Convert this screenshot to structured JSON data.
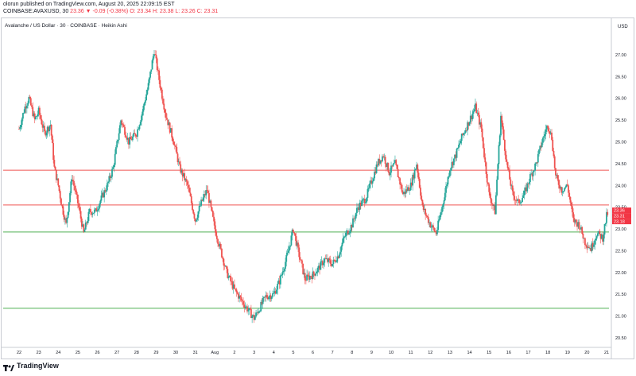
{
  "header": {
    "published": "olorun published on TradingView.com, August 20, 2025 22:09:15 EST",
    "symbol": "COINBASE:AVAXUSD, 30",
    "ohlc_main": "23.36 ▼ -0.09 (-0.38%) O: 23.34 H: 23.38 L: 23.26 C: 23.31"
  },
  "legend": "Avalanche / US Dollar · 30 · COINBASE · Heikin Ashi",
  "footer": {
    "brand": "TradingView"
  },
  "colors": {
    "up": "#26a69a",
    "down": "#ef5350",
    "support_line": "#4caf50",
    "resistance_line": "#ef5350",
    "price_label_red": "#f23645"
  },
  "chart_data": {
    "type": "candlestick",
    "subtype": "heikin-ashi",
    "currency": "USD",
    "y_ticks": [
      "27.00",
      "26.50",
      "26.00",
      "25.50",
      "25.00",
      "24.50",
      "24.00",
      "23.50",
      "23.00",
      "22.50",
      "22.00",
      "21.50",
      "21.00",
      "20.50"
    ],
    "ylim": [
      20.3,
      27.6
    ],
    "x_ticks": [
      "22",
      "23",
      "24",
      "25",
      "26",
      "27",
      "28",
      "29",
      "30",
      "31",
      "Aug",
      "2",
      "3",
      "4",
      "5",
      "6",
      "7",
      "8",
      "9",
      "10",
      "11",
      "12",
      "13",
      "14",
      "15",
      "16",
      "17",
      "18",
      "19",
      "20",
      "21"
    ],
    "horizontal_lines": [
      {
        "value": 24.35,
        "color": "red"
      },
      {
        "value": 23.55,
        "color": "red"
      },
      {
        "value": 22.93,
        "color": "green"
      },
      {
        "value": 21.18,
        "color": "green"
      }
    ],
    "price_labels": [
      "23.36",
      "23.31",
      "23.18"
    ],
    "series": [
      {
        "name": "AVAXUSD",
        "values": [
          {
            "x": 0,
            "y": 25.3
          },
          {
            "x": 0.3,
            "y": 25.8
          },
          {
            "x": 0.5,
            "y": 26.0
          },
          {
            "x": 0.8,
            "y": 25.5
          },
          {
            "x": 1.0,
            "y": 25.7
          },
          {
            "x": 1.3,
            "y": 25.2
          },
          {
            "x": 1.6,
            "y": 25.4
          },
          {
            "x": 1.8,
            "y": 24.4
          },
          {
            "x": 2.0,
            "y": 24.0
          },
          {
            "x": 2.2,
            "y": 23.5
          },
          {
            "x": 2.4,
            "y": 23.1
          },
          {
            "x": 2.7,
            "y": 24.2
          },
          {
            "x": 3.0,
            "y": 23.6
          },
          {
            "x": 3.3,
            "y": 22.9
          },
          {
            "x": 3.6,
            "y": 23.4
          },
          {
            "x": 3.9,
            "y": 23.4
          },
          {
            "x": 4.2,
            "y": 23.7
          },
          {
            "x": 4.5,
            "y": 24.0
          },
          {
            "x": 4.8,
            "y": 24.4
          },
          {
            "x": 5.2,
            "y": 25.5
          },
          {
            "x": 5.6,
            "y": 25.0
          },
          {
            "x": 6.0,
            "y": 25.2
          },
          {
            "x": 6.3,
            "y": 25.7
          },
          {
            "x": 6.6,
            "y": 26.3
          },
          {
            "x": 6.9,
            "y": 27.1
          },
          {
            "x": 7.2,
            "y": 26.3
          },
          {
            "x": 7.5,
            "y": 25.6
          },
          {
            "x": 7.9,
            "y": 25.0
          },
          {
            "x": 8.2,
            "y": 24.4
          },
          {
            "x": 8.6,
            "y": 24.0
          },
          {
            "x": 9.0,
            "y": 23.2
          },
          {
            "x": 9.3,
            "y": 23.6
          },
          {
            "x": 9.6,
            "y": 23.9
          },
          {
            "x": 10.0,
            "y": 23.0
          },
          {
            "x": 10.3,
            "y": 22.5
          },
          {
            "x": 10.6,
            "y": 22.0
          },
          {
            "x": 11.0,
            "y": 21.6
          },
          {
            "x": 11.3,
            "y": 21.4
          },
          {
            "x": 11.6,
            "y": 21.2
          },
          {
            "x": 12.0,
            "y": 20.95
          },
          {
            "x": 12.3,
            "y": 21.2
          },
          {
            "x": 12.6,
            "y": 21.45
          },
          {
            "x": 13.0,
            "y": 21.5
          },
          {
            "x": 13.3,
            "y": 21.8
          },
          {
            "x": 13.7,
            "y": 22.4
          },
          {
            "x": 14.0,
            "y": 23.0
          },
          {
            "x": 14.3,
            "y": 22.4
          },
          {
            "x": 14.6,
            "y": 21.85
          },
          {
            "x": 15.0,
            "y": 21.95
          },
          {
            "x": 15.3,
            "y": 22.1
          },
          {
            "x": 15.6,
            "y": 22.3
          },
          {
            "x": 16.0,
            "y": 22.2
          },
          {
            "x": 16.3,
            "y": 22.4
          },
          {
            "x": 16.6,
            "y": 22.8
          },
          {
            "x": 17.0,
            "y": 23.1
          },
          {
            "x": 17.3,
            "y": 23.5
          },
          {
            "x": 17.7,
            "y": 23.7
          },
          {
            "x": 18.0,
            "y": 24.1
          },
          {
            "x": 18.3,
            "y": 24.5
          },
          {
            "x": 18.6,
            "y": 24.7
          },
          {
            "x": 18.9,
            "y": 24.3
          },
          {
            "x": 19.2,
            "y": 24.5
          },
          {
            "x": 19.6,
            "y": 23.8
          },
          {
            "x": 20.0,
            "y": 24.0
          },
          {
            "x": 20.3,
            "y": 24.5
          },
          {
            "x": 20.6,
            "y": 23.5
          },
          {
            "x": 21.0,
            "y": 23.1
          },
          {
            "x": 21.3,
            "y": 22.9
          },
          {
            "x": 21.6,
            "y": 23.5
          },
          {
            "x": 22.0,
            "y": 24.4
          },
          {
            "x": 22.3,
            "y": 24.7
          },
          {
            "x": 22.6,
            "y": 25.1
          },
          {
            "x": 23.0,
            "y": 25.5
          },
          {
            "x": 23.3,
            "y": 25.8
          },
          {
            "x": 23.6,
            "y": 25.3
          },
          {
            "x": 23.8,
            "y": 24.5
          },
          {
            "x": 24.0,
            "y": 23.8
          },
          {
            "x": 24.3,
            "y": 23.4
          },
          {
            "x": 24.6,
            "y": 25.6
          },
          {
            "x": 24.9,
            "y": 24.5
          },
          {
            "x": 25.2,
            "y": 23.8
          },
          {
            "x": 25.5,
            "y": 23.6
          },
          {
            "x": 25.8,
            "y": 23.8
          },
          {
            "x": 26.1,
            "y": 24.2
          },
          {
            "x": 26.4,
            "y": 24.5
          },
          {
            "x": 26.7,
            "y": 25.0
          },
          {
            "x": 27.0,
            "y": 25.4
          },
          {
            "x": 27.2,
            "y": 25.1
          },
          {
            "x": 27.4,
            "y": 24.2
          },
          {
            "x": 27.7,
            "y": 23.9
          },
          {
            "x": 28.0,
            "y": 24.0
          },
          {
            "x": 28.3,
            "y": 23.2
          },
          {
            "x": 28.6,
            "y": 23.1
          },
          {
            "x": 28.9,
            "y": 22.7
          },
          {
            "x": 29.2,
            "y": 22.55
          },
          {
            "x": 29.5,
            "y": 22.9
          },
          {
            "x": 29.8,
            "y": 22.8
          },
          {
            "x": 30.0,
            "y": 23.3
          },
          {
            "x": 30.2,
            "y": 23.5
          },
          {
            "x": 30.4,
            "y": 23.4
          },
          {
            "x": 30.6,
            "y": 23.31
          }
        ]
      }
    ]
  }
}
